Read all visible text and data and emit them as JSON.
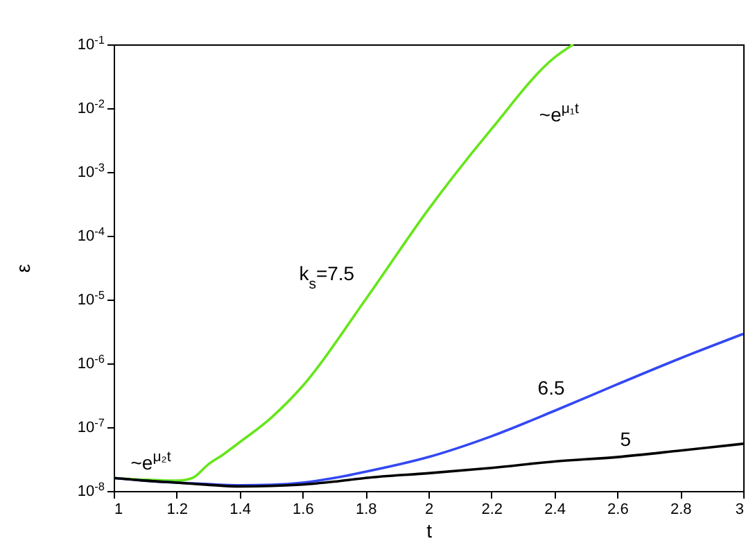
{
  "chart_data": {
    "type": "line",
    "xlabel": "t",
    "ylabel": "ε",
    "log": "y",
    "grid": false,
    "legend": false,
    "marker": "none",
    "line_style": "solid",
    "x": [
      1.0,
      1.1,
      1.2,
      1.3,
      1.4,
      1.5,
      1.6,
      1.7,
      1.8,
      2.0,
      2.2,
      2.4,
      2.6,
      2.8,
      3.0
    ],
    "xlim": [
      1,
      3
    ],
    "xticks": [
      1,
      1.2,
      1.4,
      1.6,
      1.8,
      2,
      2.2,
      2.4,
      2.6,
      2.8,
      3
    ],
    "ylim": [
      1e-08,
      0.1
    ],
    "yticks": [
      {
        "value": 1e-08,
        "label": "10$^{-8}$"
      },
      {
        "value": 1e-07,
        "label": "10$^{-7}$"
      },
      {
        "value": 1e-06,
        "label": "10$^{-6}$"
      },
      {
        "value": 1e-05,
        "label": "10$^{-5}$"
      },
      {
        "value": 0.0001,
        "label": "10$^{-4}$"
      },
      {
        "value": 0.001,
        "label": "10$^{-3}$"
      },
      {
        "value": 0.01,
        "label": "10$^{-2}$"
      },
      {
        "value": 0.1,
        "label": "10$^{-1}$"
      }
    ],
    "series": [
      {
        "name": "k$_{s}$=7.5",
        "color": "#66e61a",
        "x": [
          1.0,
          1.1,
          1.2,
          1.25,
          1.3,
          1.35,
          1.4,
          1.5,
          1.6,
          1.8,
          2.0,
          2.2,
          2.4,
          2.46
        ],
        "values": [
          1.6e-08,
          1.5e-08,
          1.45e-08,
          1.6e-08,
          2.6e-08,
          3.8e-08,
          5.8e-08,
          1.4e-07,
          4.4e-07,
          1e-05,
          0.00026,
          0.0047,
          0.062,
          0.1
        ]
      },
      {
        "name": "6.5",
        "color": "#3348f2",
        "values": [
          1.6e-08,
          1.45e-08,
          1.35e-08,
          1.28e-08,
          1.23e-08,
          1.25e-08,
          1.35e-08,
          1.6e-08,
          2e-08,
          3.4e-08,
          7.2e-08,
          1.8e-07,
          4.7e-07,
          1.2e-06,
          2.9e-06
        ]
      },
      {
        "name": "5",
        "color": "#000000",
        "values": [
          1.6e-08,
          1.45e-08,
          1.35e-08,
          1.25e-08,
          1.18e-08,
          1.2e-08,
          1.26e-08,
          1.4e-08,
          1.6e-08,
          1.9e-08,
          2.3e-08,
          2.9e-08,
          3.4e-08,
          4.3e-08,
          5.5e-08
        ]
      }
    ],
    "annotations": [
      "~e$^{μ₁t}$",
      "~e$^{μ₂t}$"
    ]
  }
}
